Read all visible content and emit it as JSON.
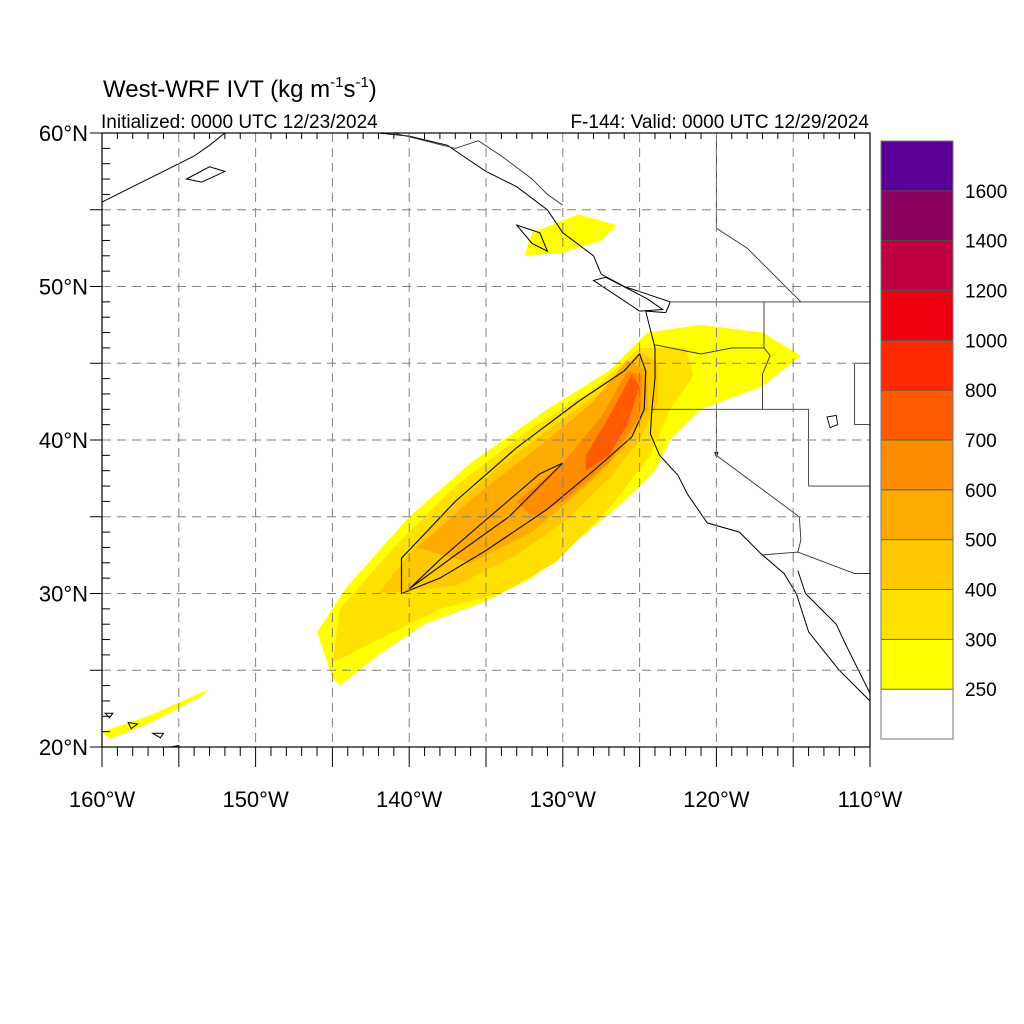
{
  "title": {
    "main": "West-WRF IVT (kg m",
    "sup1": "-1",
    "mid": "s",
    "sup2": "-1",
    "close": ")"
  },
  "subtitle_left": "Initialized: 0000 UTC 12/23/2024",
  "subtitle_right": "F-144: Valid: 0000 UTC 12/29/2024",
  "map": {
    "lon_range": [
      -160,
      -110
    ],
    "lat_range": [
      20,
      60
    ],
    "grid_spacing_deg": 5,
    "grid_style": "dashed",
    "lon_tick_labels": [
      {
        "value": -160,
        "label": "160°W"
      },
      {
        "value": -150,
        "label": "150°W"
      },
      {
        "value": -140,
        "label": "140°W"
      },
      {
        "value": -130,
        "label": "130°W"
      },
      {
        "value": -120,
        "label": "120°W"
      },
      {
        "value": -110,
        "label": "110°W"
      }
    ],
    "lat_tick_labels": [
      {
        "value": 60,
        "label": "60°N"
      },
      {
        "value": 50,
        "label": "50°N"
      },
      {
        "value": 40,
        "label": "40°N"
      },
      {
        "value": 30,
        "label": "30°N"
      },
      {
        "value": 20,
        "label": "20°N"
      }
    ]
  },
  "colorbar": {
    "levels": [
      250,
      300,
      400,
      500,
      600,
      700,
      800,
      1000,
      1200,
      1400,
      1600
    ],
    "labels": [
      "250",
      "300",
      "400",
      "500",
      "600",
      "700",
      "800",
      "1000",
      "1200",
      "1400",
      "1600"
    ],
    "colors": [
      "#ffffff",
      "#ffff00",
      "#ffe100",
      "#ffc800",
      "#ffaa00",
      "#ff8c00",
      "#ff5a00",
      "#ff2a00",
      "#ee0010",
      "#c00040",
      "#8a005f",
      "#5a0096"
    ]
  },
  "ivt_features": [
    {
      "name": "main-atmospheric-river",
      "level_index": 1,
      "points": [
        [
          -145,
          24.5
        ],
        [
          -146,
          27.5
        ],
        [
          -144,
          30.5
        ],
        [
          -140,
          35
        ],
        [
          -136,
          38.5
        ],
        [
          -131,
          42
        ],
        [
          -127,
          44.5
        ],
        [
          -124.5,
          47
        ],
        [
          -121,
          47.5
        ],
        [
          -117,
          47
        ],
        [
          -114.5,
          45.5
        ],
        [
          -117,
          43.5
        ],
        [
          -121,
          42
        ],
        [
          -123,
          40
        ],
        [
          -124,
          38
        ],
        [
          -126,
          36
        ],
        [
          -129,
          33.5
        ],
        [
          -132,
          31
        ],
        [
          -135,
          29.5
        ],
        [
          -139,
          28
        ],
        [
          -142,
          26
        ],
        [
          -144.5,
          24
        ]
      ]
    },
    {
      "name": "alaska-plume",
      "level_index": 1,
      "points": [
        [
          -132,
          53.5
        ],
        [
          -129,
          54.7
        ],
        [
          -126.5,
          54
        ],
        [
          -127.5,
          53
        ],
        [
          -130,
          52.2
        ],
        [
          -132.5,
          52
        ]
      ]
    },
    {
      "name": "hawaii-plume",
      "level_index": 1,
      "points": [
        [
          -160,
          21
        ],
        [
          -157,
          22
        ],
        [
          -153,
          23.8
        ],
        [
          -153.5,
          23.3
        ],
        [
          -157,
          21.5
        ],
        [
          -159.5,
          20.5
        ]
      ]
    },
    {
      "name": "ar-level-2",
      "level_index": 2,
      "points": [
        [
          -145,
          25.5
        ],
        [
          -144.5,
          29
        ],
        [
          -141,
          33
        ],
        [
          -137,
          37
        ],
        [
          -132,
          40.8
        ],
        [
          -128,
          43.3
        ],
        [
          -125,
          46
        ],
        [
          -122,
          46
        ],
        [
          -121.5,
          44.2
        ],
        [
          -123,
          42
        ],
        [
          -124.3,
          39
        ],
        [
          -127,
          35.5
        ],
        [
          -130.5,
          32
        ],
        [
          -134,
          30
        ],
        [
          -138,
          29
        ],
        [
          -142,
          27
        ]
      ]
    },
    {
      "name": "ar-level-3",
      "level_index": 3,
      "points": [
        [
          -142,
          30
        ],
        [
          -138.5,
          34.5
        ],
        [
          -134.5,
          38
        ],
        [
          -130.5,
          41
        ],
        [
          -127,
          43.5
        ],
        [
          -125,
          45.8
        ],
        [
          -123.8,
          45
        ],
        [
          -123.8,
          42.5
        ],
        [
          -125,
          40
        ],
        [
          -127,
          37.5
        ],
        [
          -129.5,
          35
        ],
        [
          -133,
          32.5
        ],
        [
          -137,
          30.5
        ]
      ]
    },
    {
      "name": "ar-level-4",
      "level_index": 4,
      "points": [
        [
          -139.5,
          33
        ],
        [
          -135.5,
          36.5
        ],
        [
          -131,
          40
        ],
        [
          -128,
          42.5
        ],
        [
          -125.8,
          45.2
        ],
        [
          -124.5,
          44.5
        ],
        [
          -124.5,
          42
        ],
        [
          -126,
          39.5
        ],
        [
          -128.5,
          37
        ],
        [
          -132,
          34
        ],
        [
          -136,
          32
        ]
      ]
    },
    {
      "name": "ar-level-5",
      "level_index": 5,
      "points": [
        [
          -133,
          36
        ],
        [
          -130,
          38.5
        ],
        [
          -127.5,
          41.5
        ],
        [
          -125.8,
          44.5
        ],
        [
          -124.8,
          44.2
        ],
        [
          -125,
          41.5
        ],
        [
          -127,
          38.5
        ],
        [
          -130,
          36
        ],
        [
          -132,
          35
        ]
      ]
    },
    {
      "name": "ar-level-6",
      "level_index": 6,
      "points": [
        [
          -128.5,
          39
        ],
        [
          -127,
          41.5
        ],
        [
          -125.5,
          44.3
        ],
        [
          -125,
          43.5
        ],
        [
          -125.8,
          41
        ],
        [
          -127,
          39
        ],
        [
          -128.5,
          38
        ]
      ]
    }
  ],
  "ivt_contours": [
    {
      "name": "contour-outer",
      "points": [
        [
          -140.5,
          32.3
        ],
        [
          -137,
          36
        ],
        [
          -133,
          39.5
        ],
        [
          -129,
          42.5
        ],
        [
          -126,
          44.5
        ],
        [
          -125,
          45.6
        ],
        [
          -124.6,
          44.5
        ],
        [
          -124.7,
          42
        ],
        [
          -125.5,
          40.2
        ],
        [
          -128,
          38
        ],
        [
          -131,
          35.5
        ],
        [
          -135,
          32.8
        ],
        [
          -138,
          31
        ],
        [
          -140.5,
          30
        ]
      ]
    },
    {
      "name": "contour-inner",
      "points": [
        [
          -140,
          30.3
        ],
        [
          -137,
          32.5
        ],
        [
          -133.5,
          35
        ],
        [
          -130,
          38.5
        ],
        [
          -131.5,
          37.8
        ],
        [
          -135,
          34.8
        ],
        [
          -138,
          32.2
        ]
      ]
    }
  ],
  "coastlines": [
    {
      "name": "west-coast",
      "points": [
        [
          -110,
          23
        ],
        [
          -112,
          25
        ],
        [
          -114,
          27.5
        ],
        [
          -114.8,
          30
        ],
        [
          -115.6,
          31.3
        ],
        [
          -117.1,
          32.6
        ],
        [
          -118.5,
          34
        ],
        [
          -120.6,
          34.6
        ],
        [
          -121.9,
          36.5
        ],
        [
          -122.5,
          37.7
        ],
        [
          -123.7,
          39
        ],
        [
          -124.3,
          40.4
        ],
        [
          -124.2,
          42
        ],
        [
          -124,
          44
        ],
        [
          -124,
          46
        ],
        [
          -124.6,
          48.4
        ],
        [
          -123.3,
          48.3
        ],
        [
          -123,
          49
        ],
        [
          -124.5,
          49.5
        ],
        [
          -126,
          50
        ],
        [
          -127.5,
          50.8
        ],
        [
          -128,
          52
        ],
        [
          -130,
          53.5
        ],
        [
          -131,
          55
        ],
        [
          -133,
          56.5
        ],
        [
          -135,
          57.5
        ],
        [
          -136.5,
          58.5
        ],
        [
          -137.5,
          59.2
        ],
        [
          -140,
          59.8
        ],
        [
          -142,
          60
        ]
      ]
    },
    {
      "name": "baja-east-coast",
      "points": [
        [
          -114.7,
          31.5
        ],
        [
          -114.2,
          30
        ],
        [
          -113.2,
          29
        ],
        [
          -112.2,
          28
        ],
        [
          -111.5,
          26.5
        ],
        [
          -110.5,
          24.5
        ],
        [
          -110,
          23.5
        ]
      ]
    },
    {
      "name": "alaska-peninsula",
      "points": [
        [
          -160,
          55.5
        ],
        [
          -158,
          56.5
        ],
        [
          -156,
          57.5
        ],
        [
          -154,
          58.5
        ],
        [
          -153,
          59.2
        ],
        [
          -152,
          60
        ]
      ]
    },
    {
      "name": "kodiak-island",
      "points": [
        [
          -154.5,
          57
        ],
        [
          -153,
          57.8
        ],
        [
          -152,
          57.5
        ],
        [
          -153.5,
          56.8
        ]
      ]
    },
    {
      "name": "vancouver-island",
      "points": [
        [
          -125,
          48.4
        ],
        [
          -128,
          50.4
        ],
        [
          -127.2,
          50.6
        ],
        [
          -124.5,
          49.2
        ],
        [
          -123.5,
          48.5
        ]
      ]
    },
    {
      "name": "haida-gwaii",
      "points": [
        [
          -133,
          54
        ],
        [
          -131.5,
          53.5
        ],
        [
          -131,
          52.3
        ],
        [
          -132,
          52.8
        ]
      ]
    },
    {
      "name": "hawaii-big-island",
      "points": [
        [
          -156,
          19.9
        ],
        [
          -155,
          20.1
        ],
        [
          -154.8,
          19.5
        ],
        [
          -155.7,
          18.9
        ]
      ]
    },
    {
      "name": "maui",
      "points": [
        [
          -156.7,
          20.9
        ],
        [
          -156,
          20.9
        ],
        [
          -156.2,
          20.6
        ]
      ]
    },
    {
      "name": "oahu",
      "points": [
        [
          -158.3,
          21.6
        ],
        [
          -157.7,
          21.5
        ],
        [
          -158.1,
          21.2
        ]
      ]
    },
    {
      "name": "kauai",
      "points": [
        [
          -159.8,
          22.2
        ],
        [
          -159.3,
          22.2
        ],
        [
          -159.5,
          21.9
        ]
      ]
    }
  ],
  "borders": [
    {
      "name": "us-canada-border",
      "points": [
        [
          -123,
          49
        ],
        [
          -110,
          49
        ]
      ]
    },
    {
      "name": "us-mexico-border",
      "points": [
        [
          -117.1,
          32.5
        ],
        [
          -114.7,
          32.7
        ],
        [
          -111,
          31.3
        ],
        [
          -110,
          31.3
        ]
      ]
    },
    {
      "name": "bc-alberta-border",
      "points": [
        [
          -120,
          60
        ],
        [
          -120,
          53.8
        ],
        [
          -118,
          52.5
        ],
        [
          -116,
          50.5
        ],
        [
          -114.5,
          49
        ]
      ]
    },
    {
      "name": "alaska-canada-border",
      "points": [
        [
          -141,
          60
        ],
        [
          -139,
          59.5
        ],
        [
          -137,
          59
        ],
        [
          -135.5,
          59.5
        ],
        [
          -134,
          58.5
        ],
        [
          -132,
          57
        ],
        [
          -131,
          56
        ],
        [
          -130,
          55.3
        ]
      ]
    },
    {
      "name": "ca-or-border",
      "points": [
        [
          -124.2,
          42
        ],
        [
          -117,
          42
        ],
        [
          -114,
          42
        ]
      ]
    },
    {
      "name": "or-wa-border",
      "points": [
        [
          -124,
          46.2
        ],
        [
          -121,
          45.6
        ],
        [
          -119,
          46
        ],
        [
          -116.9,
          46
        ],
        [
          -116.9,
          49
        ]
      ]
    },
    {
      "name": "idaho-border",
      "points": [
        [
          -117,
          42
        ],
        [
          -117,
          44.3
        ],
        [
          -116.5,
          45.5
        ],
        [
          -116.9,
          46
        ]
      ]
    },
    {
      "name": "ca-nv-border",
      "points": [
        [
          -120,
          42
        ],
        [
          -120,
          39
        ],
        [
          -114.6,
          35
        ]
      ]
    },
    {
      "name": "nv-ut-border",
      "points": [
        [
          -114,
          42
        ],
        [
          -114,
          37
        ]
      ]
    },
    {
      "name": "az-ut-border",
      "points": [
        [
          -114,
          37
        ],
        [
          -110,
          37
        ]
      ]
    },
    {
      "name": "montana-idaho-border",
      "points": [
        [
          -111,
          45
        ],
        [
          -111,
          41
        ],
        [
          -110,
          41
        ]
      ]
    },
    {
      "name": "wy-border",
      "points": [
        [
          -110,
          45
        ],
        [
          -111,
          45
        ]
      ]
    },
    {
      "name": "ca-az-border",
      "points": [
        [
          -114.6,
          35
        ],
        [
          -114.5,
          33.5
        ],
        [
          -114.7,
          32.7
        ]
      ]
    }
  ],
  "lakes": [
    {
      "name": "great-salt-lake",
      "points": [
        [
          -112.8,
          41.5
        ],
        [
          -112.2,
          41.6
        ],
        [
          -112.1,
          41.0
        ],
        [
          -112.6,
          40.8
        ]
      ]
    },
    {
      "name": "lake-tahoe",
      "points": [
        [
          -120.1,
          39.2
        ],
        [
          -119.9,
          39.2
        ],
        [
          -120.0,
          38.9
        ]
      ]
    }
  ]
}
